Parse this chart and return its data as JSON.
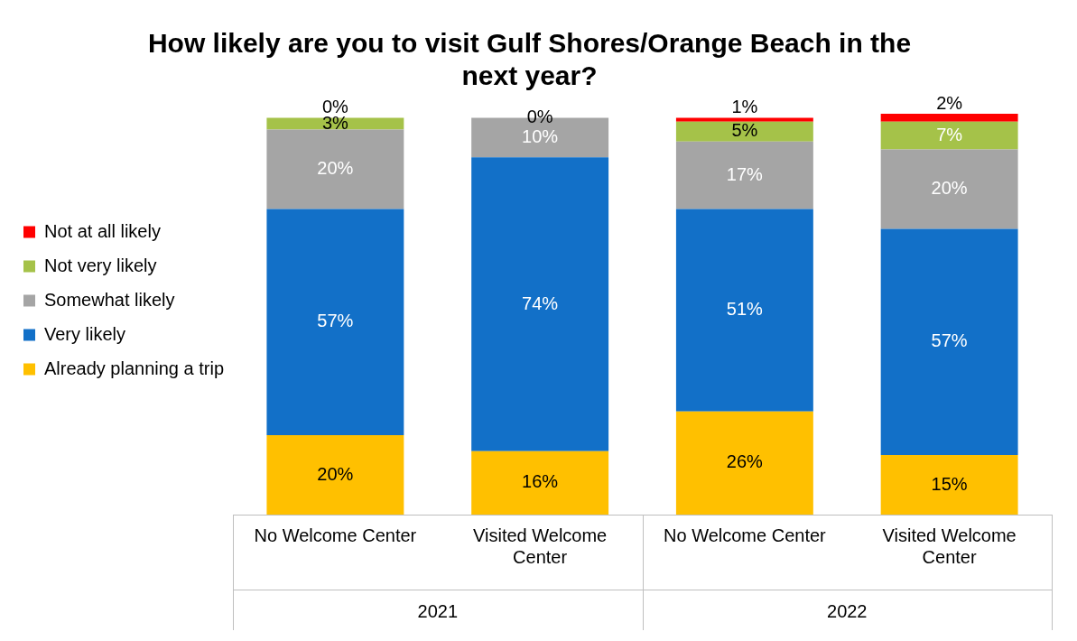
{
  "chart_data": {
    "type": "bar",
    "title": "How likely are you to visit Gulf Shores/Orange Beach in the next year?",
    "categories": [
      "No Welcome Center",
      "Visited Welcome Center",
      "No Welcome Center",
      "Visited Welcome Center"
    ],
    "stacked": true,
    "legend": "left",
    "annotations": [
      "2021",
      "2022"
    ],
    "series": [
      {
        "name": "Already planning a trip",
        "color": "#ffc000",
        "values": [
          20,
          16,
          26,
          15
        ],
        "value_labels": [
          "20%",
          "16%",
          "26%",
          "15%"
        ]
      },
      {
        "name": "Very likely",
        "color": "#1270c8",
        "values": [
          57,
          74,
          51,
          57
        ],
        "value_labels": [
          "57%",
          "74%",
          "51%",
          "57%"
        ]
      },
      {
        "name": "Somewhat likely",
        "color": "#a5a5a5",
        "values": [
          20,
          10,
          17,
          20
        ],
        "value_labels": [
          "20%",
          "10%",
          "17%",
          "20%"
        ]
      },
      {
        "name": "Not very likely",
        "color": "#a5c249",
        "values": [
          3,
          0,
          5,
          7
        ],
        "value_labels": [
          "3%",
          "0%",
          "5%",
          "7%"
        ]
      },
      {
        "name": "Not at all likely",
        "color": "#ff0000",
        "values": [
          0,
          0,
          1,
          2
        ],
        "value_labels": [
          "0%",
          null,
          "1%",
          "2%"
        ]
      }
    ]
  }
}
